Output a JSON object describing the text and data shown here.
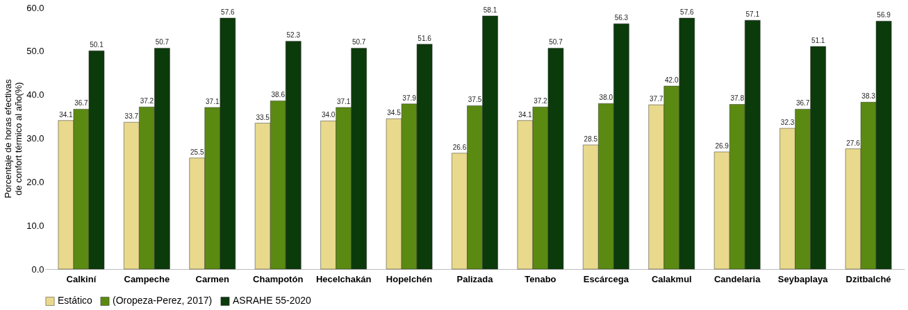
{
  "chart_data": {
    "type": "bar",
    "categories": [
      "Calkiní",
      "Campeche",
      "Carmen",
      "Champotón",
      "Hecelchakán",
      "Hopelchén",
      "Palizada",
      "Tenabo",
      "Escárcega",
      "Calakmul",
      "Candelaria",
      "Seybaplaya",
      "Dzitbalché"
    ],
    "ylabel": "Porcentaje de horas efectivas\nde confort  térmico al año(%)",
    "ylim": [
      0,
      60
    ],
    "yticks": [
      {
        "value": 0,
        "label": "0.0"
      },
      {
        "value": 10,
        "label": "10.0"
      },
      {
        "value": 20,
        "label": "20.0"
      },
      {
        "value": 30,
        "label": "30.0"
      },
      {
        "value": 40,
        "label": "40.0"
      },
      {
        "value": 50,
        "label": "50.0"
      },
      {
        "value": 60,
        "label": "60.0"
      }
    ],
    "grid": false,
    "legend": "bottom",
    "series": [
      {
        "name": "Estático",
        "color": "#e8d98c",
        "values": [
          34.1,
          33.7,
          25.5,
          33.5,
          34.0,
          34.5,
          26.6,
          34.1,
          28.5,
          37.7,
          26.9,
          32.3,
          27.6
        ],
        "value_labels": [
          "34.1",
          "33.7",
          "25.5",
          "33.5",
          "34.0",
          "34.5",
          "26.6",
          "34.1",
          "28.5",
          "37.7",
          "26.9",
          "32.3",
          "27.6"
        ]
      },
      {
        "name": "(Oropeza-Perez, 2017)",
        "color": "#5b8a12",
        "values": [
          36.7,
          37.2,
          37.1,
          38.6,
          37.1,
          37.9,
          37.5,
          37.2,
          38.0,
          42.0,
          37.8,
          36.7,
          38.3
        ],
        "value_labels": [
          "36.7",
          "37.2",
          "37.1",
          "38.6",
          "37.1",
          "37.9",
          "37.5",
          "37.2",
          "38.0",
          "42.0",
          "37.8",
          "36.7",
          "38.3"
        ]
      },
      {
        "name": "ASRAHE 55-2020",
        "color": "#0b3a0b",
        "values": [
          50.1,
          50.7,
          57.6,
          52.3,
          50.7,
          51.6,
          58.1,
          50.7,
          56.3,
          57.6,
          57.1,
          51.1,
          56.9
        ],
        "value_labels": [
          "50.1",
          "50.7",
          "57.6",
          "52.3",
          "50.7",
          "51.6",
          "58.1",
          "50.7",
          "56.3",
          "57.6",
          "57.1",
          "51.1",
          "56.9"
        ]
      }
    ]
  }
}
